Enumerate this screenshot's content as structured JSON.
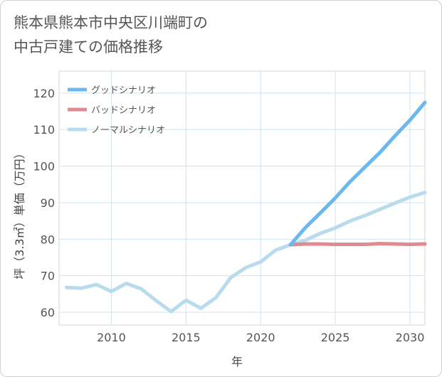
{
  "page": {
    "title_line1": "熊本県熊本市中央区川端町の",
    "title_line2": "中古戸建ての価格推移"
  },
  "chart_data": {
    "type": "line",
    "title": "熊本県熊本市中央区川端町の中古戸建ての価格推移",
    "xlabel": "年",
    "ylabel": "坪（3.3㎡）単価（万円）",
    "xlim": [
      2006.5,
      2031
    ],
    "ylim": [
      56.5,
      126
    ],
    "xticks": [
      2010,
      2015,
      2020,
      2025,
      2030
    ],
    "yticks": [
      60,
      70,
      80,
      90,
      100,
      110,
      120
    ],
    "grid": true,
    "legend_position": "top-left",
    "series": [
      {
        "name": "グッドシナリオ",
        "color": "#6bb8ee",
        "x": [
          2022,
          2023,
          2024,
          2025,
          2026,
          2027,
          2028,
          2029,
          2030,
          2031
        ],
        "values": [
          78.5,
          83.2,
          87.2,
          91.3,
          95.8,
          99.8,
          103.8,
          108.3,
          112.6,
          117.4
        ]
      },
      {
        "name": "バッドシナリオ",
        "color": "#e08a92",
        "x": [
          2022,
          2023,
          2024,
          2025,
          2026,
          2027,
          2028,
          2029,
          2030,
          2031
        ],
        "values": [
          78.5,
          78.7,
          78.7,
          78.6,
          78.6,
          78.6,
          78.8,
          78.7,
          78.6,
          78.7
        ]
      },
      {
        "name": "ノーマルシナリオ",
        "color": "#b8dced",
        "x": [
          2007,
          2008,
          2009,
          2010,
          2011,
          2012,
          2013,
          2014,
          2015,
          2016,
          2017,
          2018,
          2019,
          2020,
          2021,
          2022,
          2023,
          2024,
          2025,
          2026,
          2027,
          2028,
          2029,
          2030,
          2031
        ],
        "values": [
          66.8,
          66.6,
          67.6,
          65.7,
          67.9,
          66.4,
          63.2,
          60.2,
          63.3,
          61.1,
          64.0,
          69.5,
          72.2,
          73.8,
          77.0,
          78.5,
          79.7,
          81.6,
          83.1,
          85.0,
          86.5,
          88.2,
          89.9,
          91.5,
          92.8
        ]
      }
    ]
  }
}
